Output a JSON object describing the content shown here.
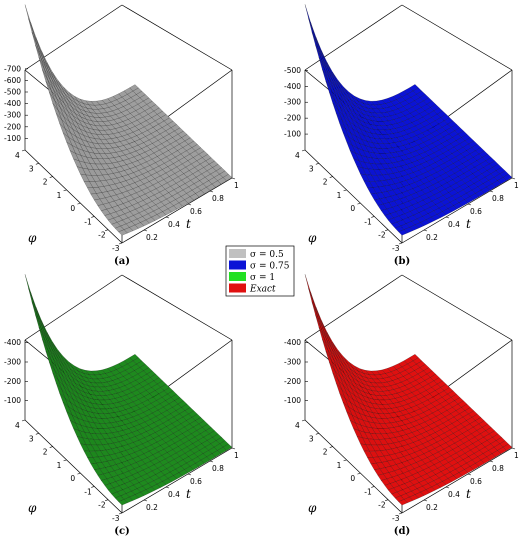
{
  "chart_data": [
    {
      "type": "surface",
      "panel_label": "(a)",
      "color": "#9e9e9e",
      "xlabel": "t",
      "ylabel": "φ",
      "t_ticks": [
        "0.2",
        "0.4",
        "0.6",
        "0.8",
        "1"
      ],
      "phi_ticks": [
        "-3",
        "-2",
        "-1",
        "0",
        "1",
        "2",
        "3",
        "4"
      ],
      "z_ticks": [
        "-100",
        "-200",
        "-300",
        "-400",
        "-500",
        "-600",
        "-700"
      ],
      "z_max": 700
    },
    {
      "type": "surface",
      "panel_label": "(b)",
      "color": "#0b13d6",
      "xlabel": "t",
      "ylabel": "φ",
      "t_ticks": [
        "0.2",
        "0.4",
        "0.6",
        "0.8",
        "1"
      ],
      "phi_ticks": [
        "-3",
        "-2",
        "-1",
        "0",
        "1",
        "2",
        "3",
        "4"
      ],
      "z_ticks": [
        "-100",
        "-200",
        "-300",
        "-400",
        "-500"
      ],
      "z_max": 510
    },
    {
      "type": "surface",
      "panel_label": "(c)",
      "color": "#1e8a1e",
      "xlabel": "t",
      "ylabel": "φ",
      "t_ticks": [
        "0.2",
        "0.4",
        "0.6",
        "0.8",
        "1"
      ],
      "phi_ticks": [
        "-3",
        "-2",
        "-1",
        "0",
        "1",
        "2",
        "3",
        "4"
      ],
      "z_ticks": [
        "-100",
        "-200",
        "-300",
        "-400"
      ],
      "z_max": 420
    },
    {
      "type": "surface",
      "panel_label": "(d)",
      "color": "#e01010",
      "xlabel": "t",
      "ylabel": "φ",
      "t_ticks": [
        "0.2",
        "0.4",
        "0.6",
        "0.8",
        "1"
      ],
      "phi_ticks": [
        "-3",
        "-2",
        "-1",
        "0",
        "1",
        "2",
        "3",
        "4"
      ],
      "z_ticks": [
        "-100",
        "-200",
        "-300",
        "-400"
      ],
      "z_max": 420
    }
  ],
  "legend": [
    {
      "label": "σ = 0.5",
      "color": "#c0c0c0",
      "italic": false
    },
    {
      "label": "σ = 0.75",
      "color": "#0b13d6",
      "italic": false
    },
    {
      "label": "σ = 1",
      "color": "#22e022",
      "italic": false
    },
    {
      "label": "Exact",
      "color": "#e01010",
      "italic": true
    }
  ]
}
